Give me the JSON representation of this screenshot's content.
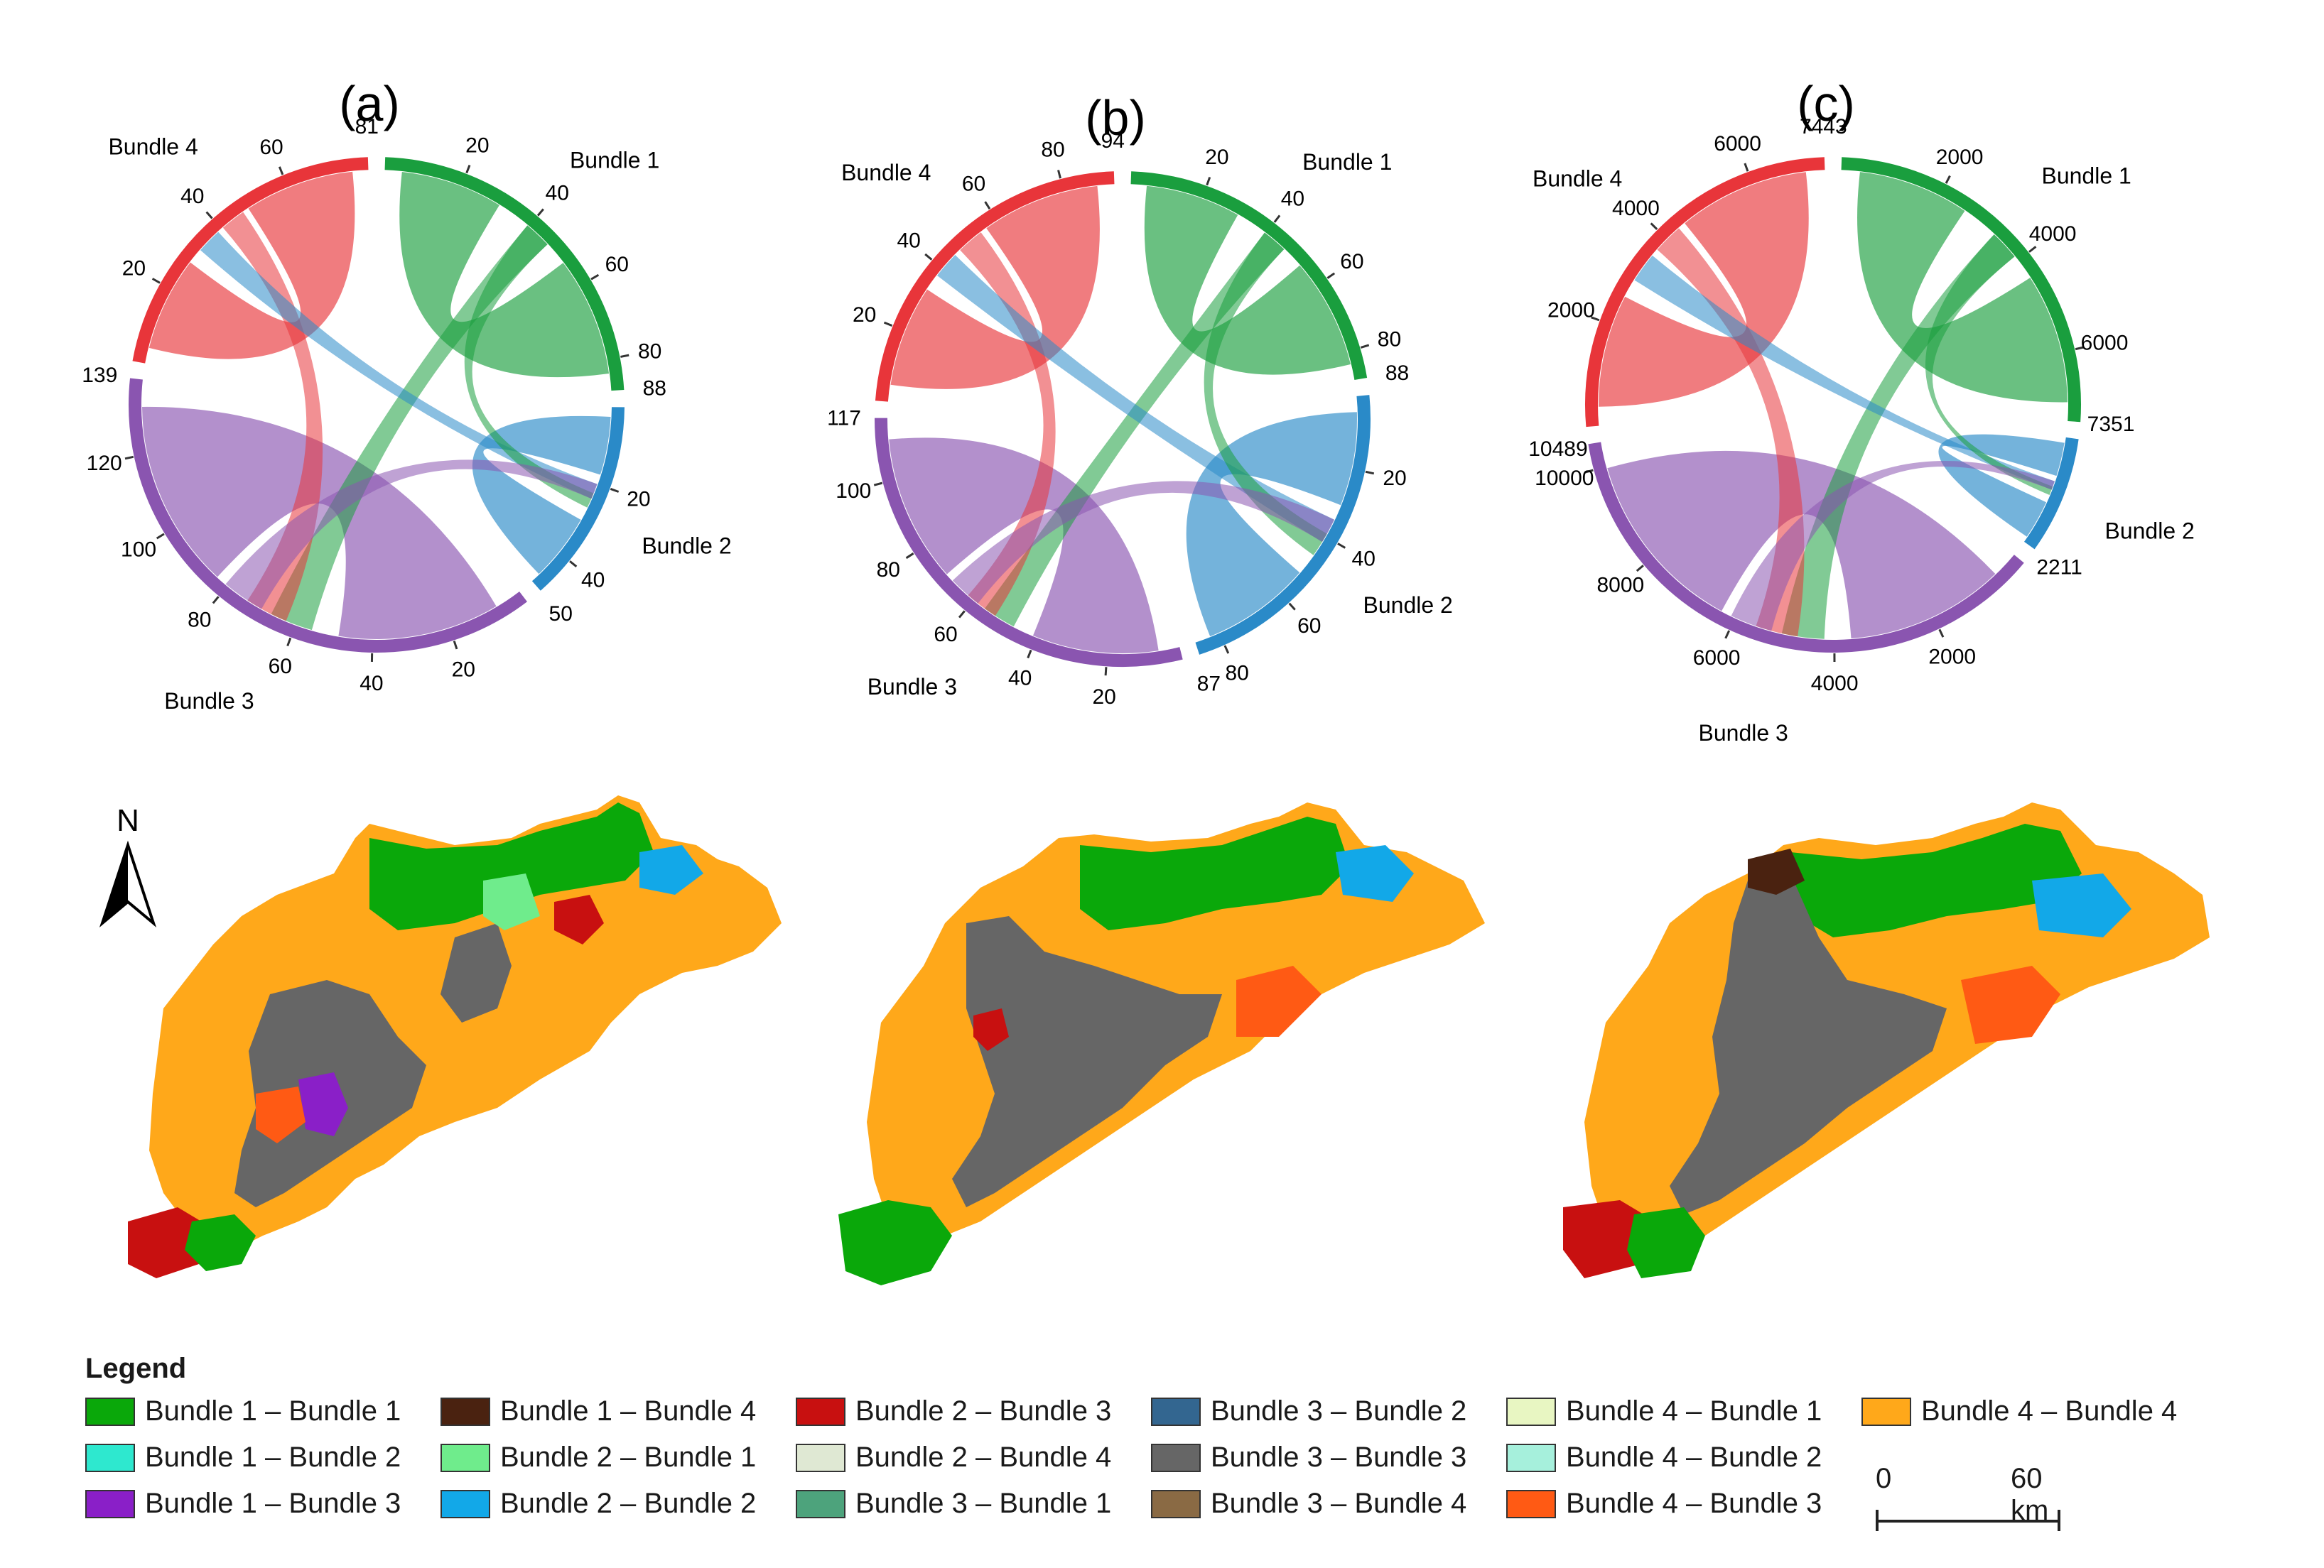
{
  "figure": {
    "panels": [
      {
        "id": "a",
        "label": "(a)",
        "bundle_labels": [
          "Bundle 1",
          "Bundle 2",
          "Bundle 3",
          "Bundle 4"
        ],
        "segments": [
          {
            "name": "Bundle 1",
            "total": 88,
            "color": "#1a9e3e",
            "ticks": [
              20,
              40,
              60,
              80
            ]
          },
          {
            "name": "Bundle 2",
            "total": 50,
            "color": "#2a8ac8",
            "ticks": [
              20,
              40
            ]
          },
          {
            "name": "Bundle 3",
            "total": 139,
            "color": "#8a55b0",
            "ticks": [
              20,
              40,
              60,
              80,
              100,
              120
            ]
          },
          {
            "name": "Bundle 4",
            "total": 81,
            "color": "#e8353a",
            "ticks": [
              20,
              40,
              60
            ]
          }
        ]
      },
      {
        "id": "b",
        "label": "(b)",
        "bundle_labels": [
          "Bundle 1",
          "Bundle 2",
          "Bundle 3",
          "Bundle 4"
        ],
        "segments": [
          {
            "name": "Bundle 1",
            "total": 88,
            "color": "#1a9e3e",
            "ticks": [
              20,
              40,
              60,
              80
            ]
          },
          {
            "name": "Bundle 2",
            "total": 87,
            "color": "#2a8ac8",
            "ticks": [
              20,
              40,
              60,
              80
            ]
          },
          {
            "name": "Bundle 3",
            "total": 117,
            "color": "#8a55b0",
            "ticks": [
              20,
              40,
              60,
              80,
              100
            ]
          },
          {
            "name": "Bundle 4",
            "total": 94,
            "color": "#e8353a",
            "ticks": [
              20,
              40,
              60,
              80
            ]
          }
        ]
      },
      {
        "id": "c",
        "label": "(c)",
        "bundle_labels": [
          "Bundle 1",
          "Bundle 2",
          "Bundle 3",
          "Bundle 4"
        ],
        "segments": [
          {
            "name": "Bundle 1",
            "total": 7351,
            "color": "#1a9e3e",
            "ticks": [
              2000,
              4000,
              6000
            ]
          },
          {
            "name": "Bundle 2",
            "total": 2211,
            "color": "#2a8ac8",
            "ticks": []
          },
          {
            "name": "Bundle 3",
            "total": 10489,
            "color": "#8a55b0",
            "ticks": [
              2000,
              4000,
              6000,
              8000,
              10000
            ]
          },
          {
            "name": "Bundle 4",
            "total": 7443,
            "color": "#e8353a",
            "ticks": [
              2000,
              4000,
              6000
            ]
          }
        ]
      }
    ],
    "north_label": "N"
  },
  "legend": {
    "title": "Legend",
    "items": [
      {
        "label": "Bundle 1 – Bundle 1",
        "color": "#0aa80a"
      },
      {
        "label": "Bundle 1 – Bundle 2",
        "color": "#2ee8cf"
      },
      {
        "label": "Bundle 1 – Bundle 3",
        "color": "#8a1fc8"
      },
      {
        "label": "Bundle 1 – Bundle 4",
        "color": "#4a2210"
      },
      {
        "label": "Bundle 2 – Bundle 1",
        "color": "#6fec8c"
      },
      {
        "label": "Bundle 2 – Bundle 2",
        "color": "#12a8e8"
      },
      {
        "label": "Bundle 2 – Bundle 3",
        "color": "#c81010"
      },
      {
        "label": "Bundle 2 – Bundle 4",
        "color": "#dfe8d3"
      },
      {
        "label": "Bundle 3 – Bundle 1",
        "color": "#4da37c"
      },
      {
        "label": "Bundle 3 – Bundle 2",
        "color": "#336690"
      },
      {
        "label": "Bundle 3 – Bundle 3",
        "color": "#666666"
      },
      {
        "label": "Bundle 3 – Bundle 4",
        "color": "#8a6a44"
      },
      {
        "label": "Bundle 4 – Bundle 1",
        "color": "#e8f6c2"
      },
      {
        "label": "Bundle 4 – Bundle 2",
        "color": "#a6f0dc"
      },
      {
        "label": "Bundle 4 – Bundle 3",
        "color": "#ff5a14"
      },
      {
        "label": "Bundle 4 – Bundle 4",
        "color": "#ffa81a"
      }
    ]
  },
  "scale_bar": {
    "start": "0",
    "end": "60 km"
  }
}
